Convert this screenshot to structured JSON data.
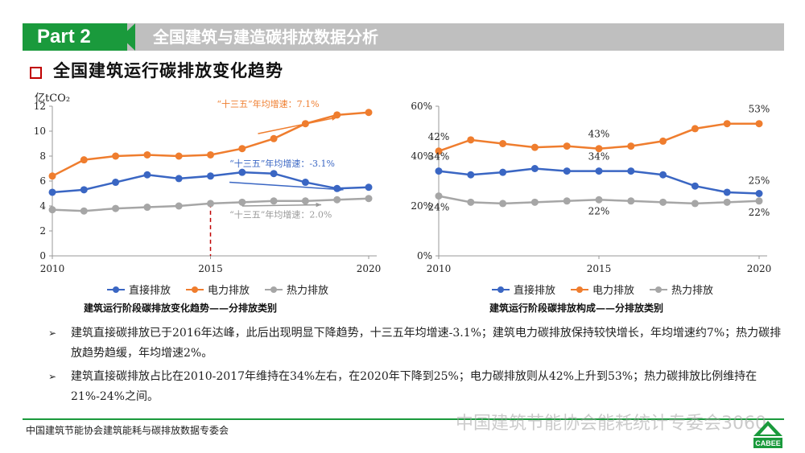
{
  "header": {
    "part_label": "Part 2",
    "title": "全国建筑与建造碳排放数据分析"
  },
  "section_title": "全国建筑运行碳排放变化趋势",
  "colors": {
    "direct": "#3a66c3",
    "electric": "#ef7d2e",
    "heat": "#a6a6a6",
    "accent_green": "#1a9a3c",
    "marker_red": "#c00000"
  },
  "chart_data": [
    {
      "type": "line",
      "ylabel": "亿tCO₂",
      "x": [
        2010,
        2011,
        2012,
        2013,
        2014,
        2015,
        2016,
        2017,
        2018,
        2019,
        2020
      ],
      "xticks": [
        "2010",
        "2015",
        "2020"
      ],
      "ylim": [
        0,
        12
      ],
      "yticks": [
        "0",
        "2",
        "4",
        "6",
        "8",
        "10",
        "12"
      ],
      "series": [
        {
          "name": "直接排放",
          "key": "direct",
          "values": [
            5.1,
            5.3,
            5.9,
            6.5,
            6.2,
            6.4,
            6.7,
            6.6,
            5.9,
            5.4,
            5.5
          ]
        },
        {
          "name": "电力排放",
          "key": "electric",
          "values": [
            6.4,
            7.7,
            8.0,
            8.1,
            8.0,
            8.1,
            8.6,
            9.4,
            10.6,
            11.3,
            11.5
          ]
        },
        {
          "name": "热力排放",
          "key": "heat",
          "values": [
            3.7,
            3.6,
            3.8,
            3.9,
            4.0,
            4.2,
            4.3,
            4.4,
            4.4,
            4.5,
            4.6
          ]
        }
      ],
      "annotations": {
        "electric": "“十三五”年均增速：7.1%",
        "direct": "“十三五”年均增速：-3.1%",
        "heat": "“十三五”年均增速：2.0%"
      },
      "caption": "建筑运行阶段碳排放变化趋势——分排放类别"
    },
    {
      "type": "line",
      "x": [
        2010,
        2011,
        2012,
        2013,
        2014,
        2015,
        2016,
        2017,
        2018,
        2019,
        2020
      ],
      "xticks": [
        "2010",
        "2015",
        "2020"
      ],
      "ylim": [
        0,
        60
      ],
      "yticks": [
        "0%",
        "20%",
        "40%",
        "60%"
      ],
      "series": [
        {
          "name": "直接排放",
          "key": "direct",
          "values": [
            34,
            32.5,
            33.5,
            35,
            34,
            34,
            34,
            32.5,
            28,
            25.5,
            25
          ]
        },
        {
          "name": "电力排放",
          "key": "electric",
          "values": [
            42,
            46.5,
            45,
            43.5,
            44,
            43,
            44,
            46,
            51,
            53,
            53
          ]
        },
        {
          "name": "热力排放",
          "key": "heat",
          "values": [
            24,
            21.5,
            21,
            21.5,
            22,
            22.5,
            22,
            21.5,
            21,
            21.5,
            22
          ]
        }
      ],
      "data_labels": {
        "electric": [
          "42%",
          "43%",
          "53%"
        ],
        "direct": [
          "34%",
          "34%",
          "25%"
        ],
        "heat": [
          "24%",
          "22%",
          "22%"
        ]
      },
      "caption": "建筑运行阶段碳排放构成——分排放类别"
    }
  ],
  "legend": [
    "直接排放",
    "电力排放",
    "热力排放"
  ],
  "bullets": [
    "建筑直接碳排放已于2016年达峰，此后出现明显下降趋势，十三五年均增速-3.1%；建筑电力碳排放保持较快增长，年均增速约7%；热力碳排放趋势趋缓，年均增速2%。",
    "建筑直接碳排放占比在2010-2017年维持在34%左右，在2020年下降到25%；电力碳排放则从42%上升到53%；热力碳排放比例维持在21%-24%之间。"
  ],
  "footer": "中国建筑节能协会建筑能耗与碳排放数据专委会",
  "watermark": "中国建筑节能协会能耗统计专委会3060",
  "logo_text": "CABEE"
}
